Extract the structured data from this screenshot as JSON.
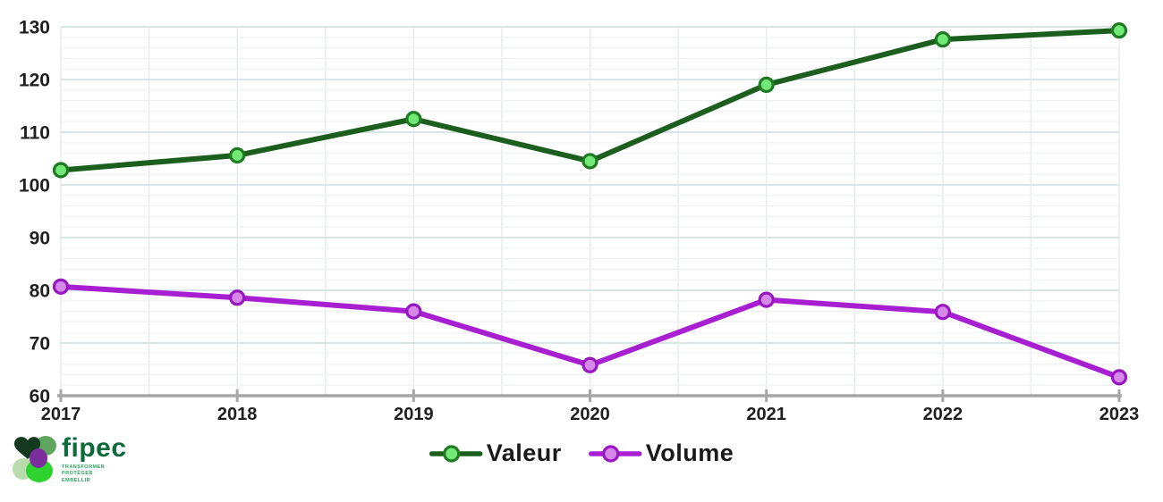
{
  "chart_data": {
    "type": "line",
    "title": "",
    "xlabel": "",
    "ylabel": "",
    "x": [
      "2017",
      "2018",
      "2019",
      "2020",
      "2021",
      "2022",
      "2023"
    ],
    "series": [
      {
        "name": "Valeur",
        "values": [
          102.8,
          105.6,
          112.5,
          104.5,
          119.0,
          127.6,
          129.3
        ],
        "line_color": "#1b5e1d",
        "marker_fill": "#72e976",
        "marker_stroke": "#1f7a22"
      },
      {
        "name": "Volume",
        "values": [
          80.7,
          78.6,
          76.0,
          65.8,
          78.2,
          75.9,
          63.5
        ],
        "line_color": "#a81fd2",
        "marker_fill": "#d687ea",
        "marker_stroke": "#9718c0"
      }
    ],
    "ylim": [
      60,
      130
    ],
    "y_ticks": [
      60,
      70,
      80,
      90,
      100,
      110,
      120,
      130
    ],
    "y_minor_step": 2,
    "x_minor_divisions": 2,
    "grid": true,
    "legend_position": "bottom-center"
  },
  "colors": {
    "grid_major": "#d7e6e6",
    "grid_minor": "#eef2f4",
    "grid_vertical": "#e9ebec",
    "axis": "#a6a6a6",
    "tick_text": "#1f1f1f",
    "legend_text": "#1a1a1a",
    "logo_green_dark": "#13391f",
    "logo_green_bright": "#2fd32f",
    "logo_purple": "#7c2d9e",
    "logo_text_green": "#0c6b3a"
  },
  "logo": {
    "name": "fipec",
    "tagline": [
      "TRANSFORMER",
      "PROTÉGER",
      "EMBELLIR"
    ]
  }
}
